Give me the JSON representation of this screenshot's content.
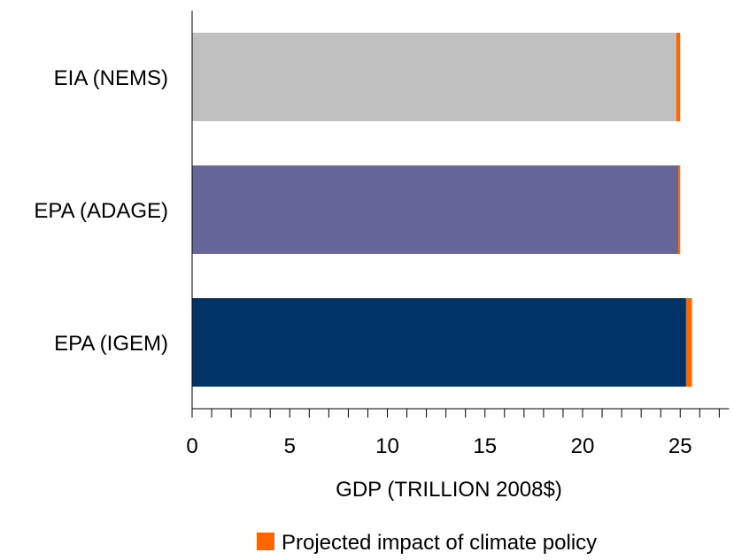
{
  "chart_data": {
    "type": "bar",
    "orientation": "horizontal",
    "stacked": true,
    "categories": [
      "EIA (NEMS)",
      "EPA (ADAGE)",
      "EPA (IGEM)"
    ],
    "series": [
      {
        "values": [
          24.8,
          24.9,
          25.3
        ],
        "colors": [
          "#c0c0c0",
          "#666699",
          "#003366"
        ]
      },
      {
        "name": "Projected impact of climate policy",
        "values": [
          0.2,
          0.1,
          0.3
        ],
        "color": "#ff6600"
      }
    ],
    "xlabel": "GDP (TRILLION 2008$)",
    "ylabel": "",
    "title": "",
    "xlim": [
      0,
      27.5
    ],
    "xticks": [
      0,
      5,
      10,
      15,
      20,
      25
    ],
    "minor_tick_step": 1,
    "grid": false,
    "legend_position": "bottom"
  }
}
